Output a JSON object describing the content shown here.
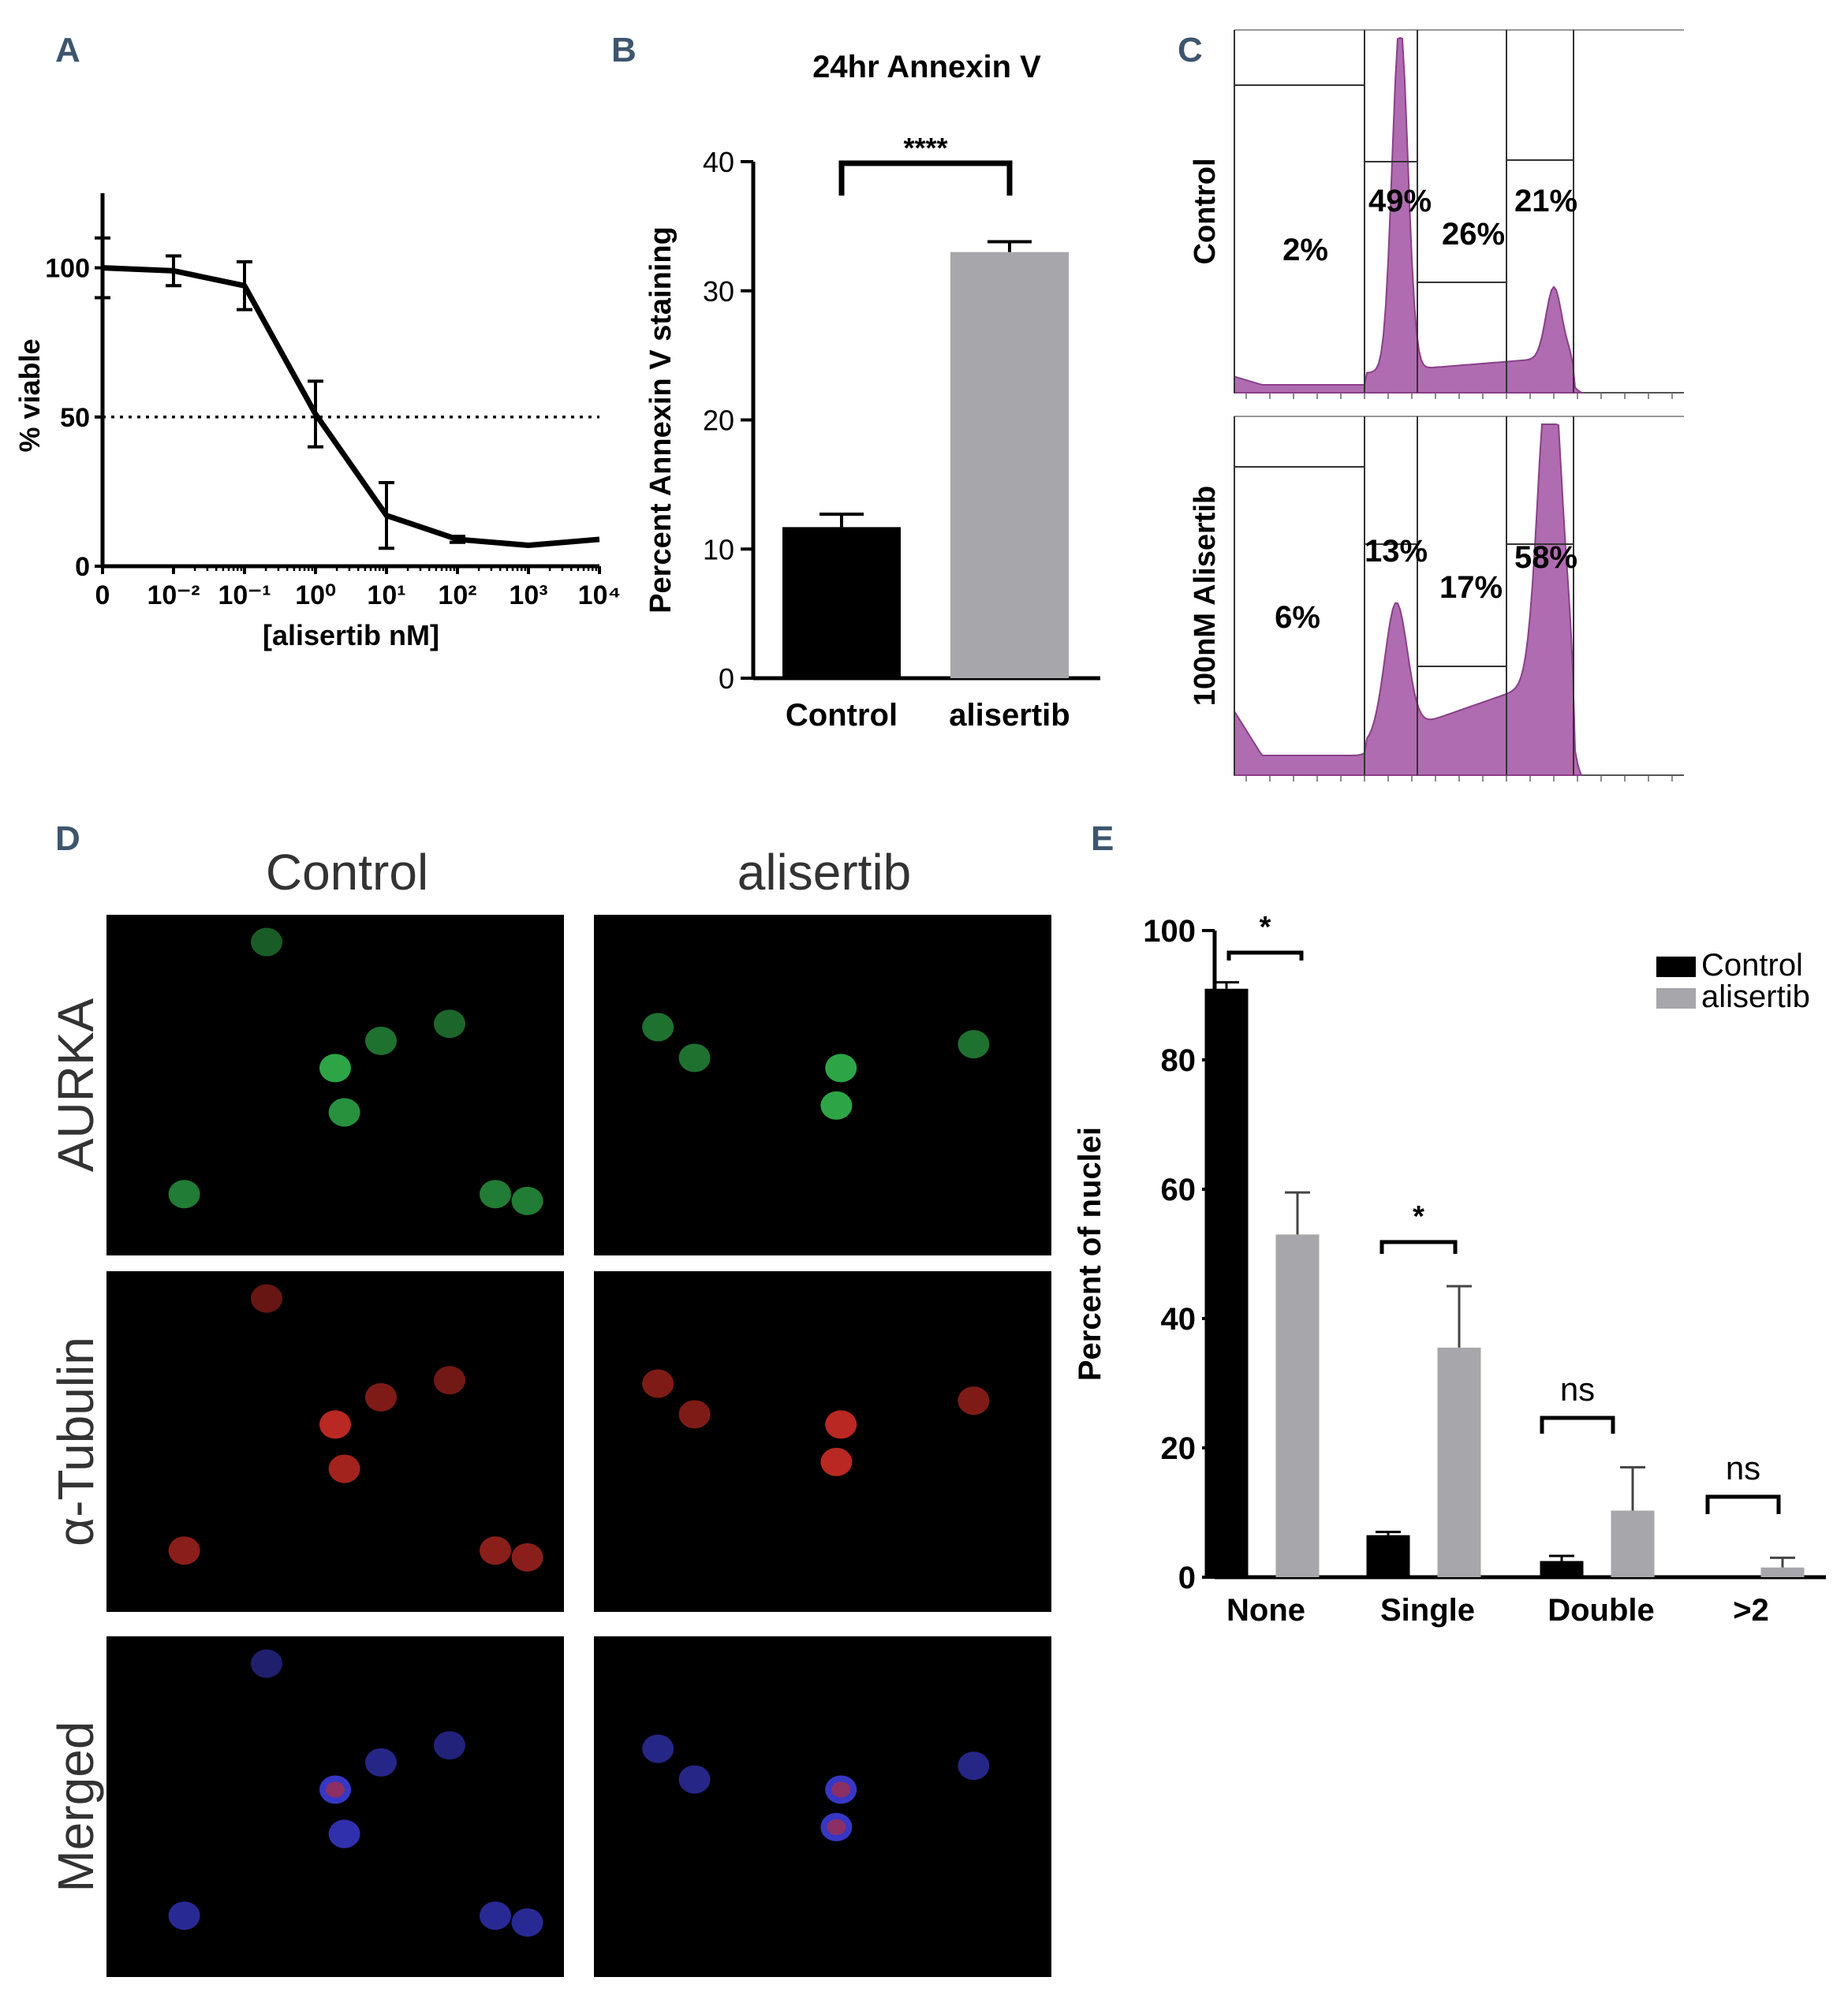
{
  "colors": {
    "control": "#000000",
    "alisertib": "#a7a7ab",
    "histogram": "#b06cb0",
    "panel_letter": "#3d566e",
    "aurka_cell": "#2fae4a",
    "tubulin_cell": "#c32a24",
    "merged_cell": "#3a3ad0"
  },
  "panels": {
    "A": {
      "letter": "A"
    },
    "B": {
      "letter": "B"
    },
    "C": {
      "letter": "C"
    },
    "D": {
      "letter": "D"
    },
    "E": {
      "letter": "E"
    }
  },
  "chart_data": [
    {
      "id": "A",
      "type": "line",
      "xlabel": "[alisertib nM]",
      "ylabel": "% viable",
      "x_scale": "log (with 0 at origin)",
      "x_tick_labels": [
        "0",
        "10⁻²",
        "10⁻¹",
        "10⁰",
        "10¹",
        "10²",
        "10³",
        "10⁴"
      ],
      "y_ticks": [
        0,
        50,
        100
      ],
      "ylim": [
        0,
        125
      ],
      "reference_line": {
        "y": 50,
        "style": "dotted"
      },
      "series": [
        {
          "x": [
            0,
            0.01,
            0.1,
            1,
            10,
            100,
            1000,
            10000
          ],
          "y": [
            100,
            99,
            94,
            51,
            17,
            9,
            7,
            9
          ],
          "error": [
            10,
            5,
            8,
            11,
            11,
            1,
            0,
            0
          ]
        }
      ]
    },
    {
      "id": "B",
      "type": "bar",
      "title": "24hr Annexin V",
      "ylabel": "Percent Annexin V staining",
      "categories": [
        "Control",
        "alisertib"
      ],
      "values": [
        11.7,
        33.0
      ],
      "errors": [
        1.0,
        0.8
      ],
      "ylim": [
        0,
        40
      ],
      "y_ticks": [
        0,
        10,
        20,
        30,
        40
      ],
      "significance": "****"
    },
    {
      "id": "C",
      "type": "histogram",
      "rows": [
        {
          "label": "Control",
          "gate_percents": [
            "2%",
            "49%",
            "26%",
            "21%"
          ]
        },
        {
          "label": "100nM Alisertib",
          "gate_percents": [
            "6%",
            "13%",
            "17%",
            "58%"
          ]
        }
      ]
    },
    {
      "id": "E",
      "type": "bar",
      "ylabel": "Percent of nuclei",
      "categories": [
        "None",
        "Single",
        "Double",
        ">2"
      ],
      "series": [
        {
          "name": "Control",
          "values": [
            91,
            6.5,
            2.5,
            0
          ],
          "errors": [
            1,
            0.5,
            0.8,
            0
          ]
        },
        {
          "name": "alisertib",
          "values": [
            53,
            35.5,
            10.3,
            1.5
          ],
          "errors": [
            6.5,
            9.5,
            6.7,
            1.5
          ]
        }
      ],
      "ylim": [
        0,
        100
      ],
      "y_ticks": [
        0,
        20,
        40,
        60,
        80,
        100
      ],
      "legend": "top-right",
      "significance": [
        "*",
        "*",
        "ns",
        "ns"
      ]
    }
  ],
  "micrographs": {
    "columns": [
      "Control",
      "alisertib"
    ],
    "rows": [
      "AURKA",
      "α-Tubulin",
      "Merged"
    ]
  }
}
